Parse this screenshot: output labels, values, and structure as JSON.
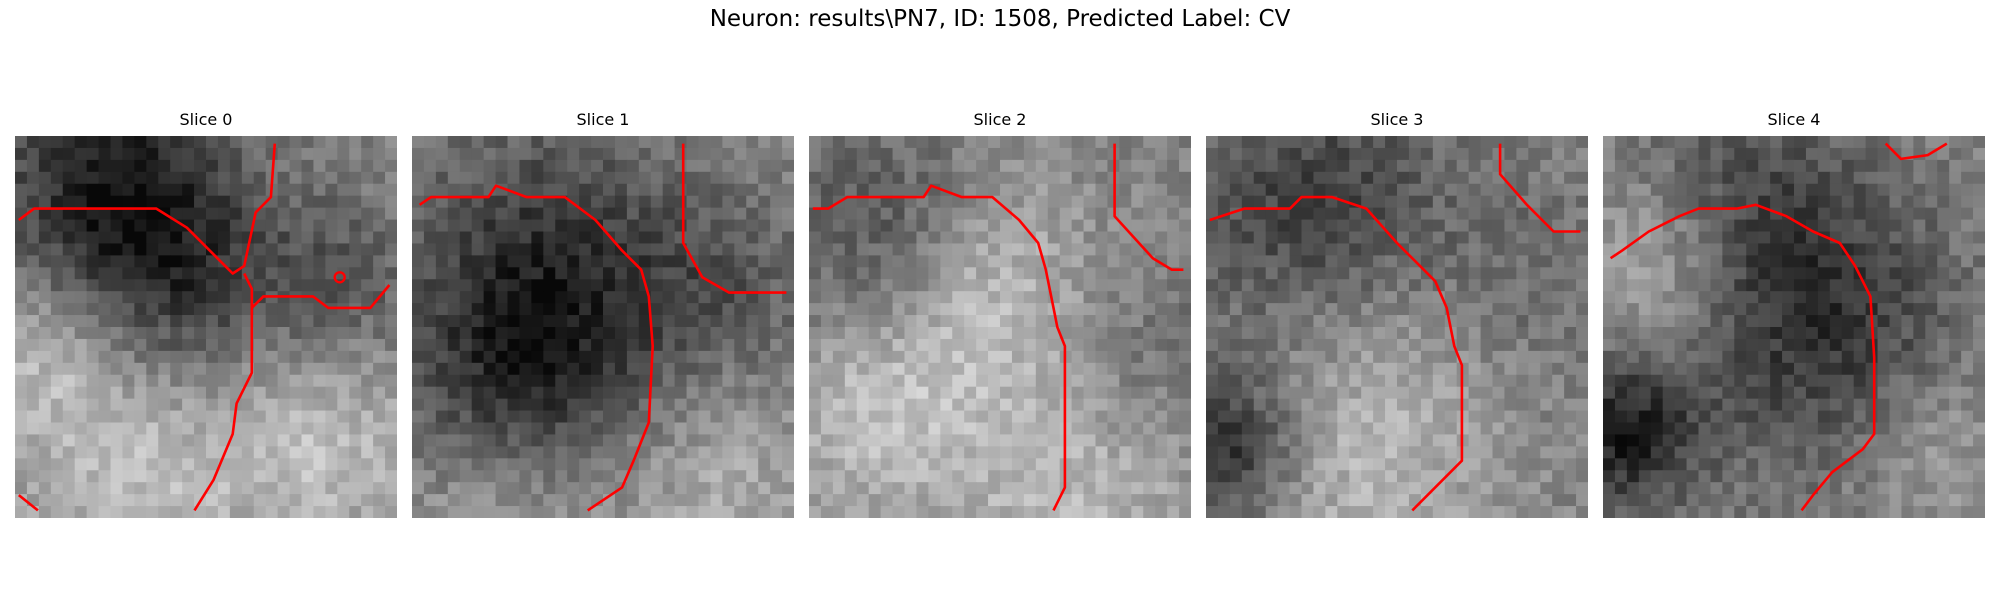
{
  "figure": {
    "suptitle": "Neuron: results\\PN7, ID: 1508, Predicted Label: CV",
    "trace_color": "#ff0000"
  },
  "panels": [
    {
      "title": "Slice 0"
    },
    {
      "title": "Slice 1"
    },
    {
      "title": "Slice 2"
    },
    {
      "title": "Slice 3"
    },
    {
      "title": "Slice 4"
    }
  ]
}
